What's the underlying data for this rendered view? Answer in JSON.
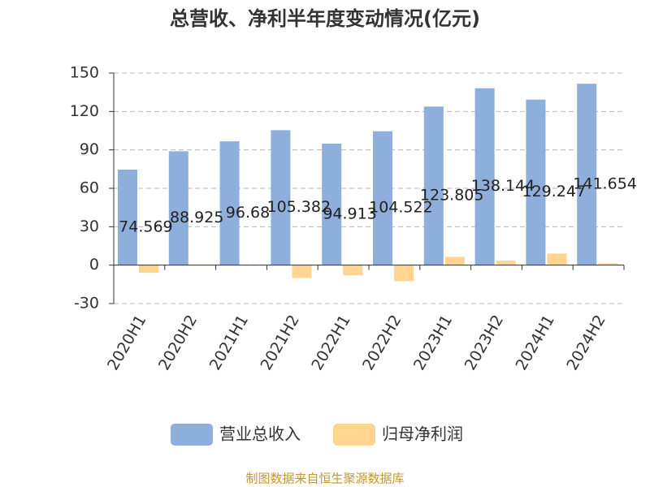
{
  "chart_data": {
    "type": "bar",
    "title": "总营收、净利半年度变动情况(亿元)",
    "categories": [
      "2020H1",
      "2020H2",
      "2021H1",
      "2021H2",
      "2022H1",
      "2022H2",
      "2023H1",
      "2023H2",
      "2024H1",
      "2024H2"
    ],
    "series": [
      {
        "name": "营业总收入",
        "color": "#8eaedb",
        "values": [
          74.569,
          88.925,
          96.68,
          105.382,
          94.913,
          104.522,
          123.805,
          138.144,
          129.247,
          141.654
        ]
      },
      {
        "name": "归母净利润",
        "color": "#ffd591",
        "values": [
          -6,
          0.5,
          0.2,
          -10,
          -8,
          -12.5,
          6.5,
          3.5,
          9,
          1.5
        ]
      }
    ],
    "ylim": [
      -30,
      150
    ],
    "yticks": [
      -30,
      0,
      30,
      60,
      90,
      120,
      150
    ],
    "grid": true,
    "source": "制图数据来自恒生聚源数据库"
  }
}
